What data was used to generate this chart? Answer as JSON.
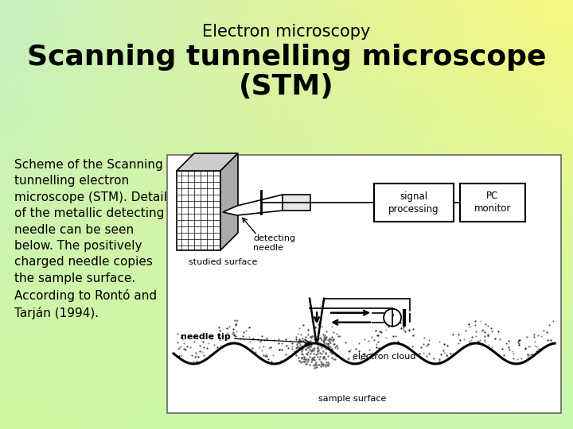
{
  "title_line1": "Electron microscopy",
  "title_line2": "Scanning tunnelling microscope\n(STM)",
  "title_line1_fontsize": 15,
  "title_line2_fontsize": 26,
  "body_text": "Scheme of the Scanning\ntunnelling electron\nmicroscope (STM). Detail\nof the metallic detecting\nneedle can be seen\nbelow. The positively\ncharged needle copies\nthe sample surface.\nAccording to Rontó and\nTarján (1994).",
  "body_text_fontsize": 11,
  "bg_tl": [
    0.78,
    0.94,
    0.75
  ],
  "bg_tr": [
    0.97,
    0.97,
    0.5
  ],
  "bg_bl": [
    0.82,
    0.97,
    0.63
  ],
  "bg_br": [
    0.78,
    0.97,
    0.69
  ],
  "title_color": "#000000",
  "body_color": "#000000"
}
